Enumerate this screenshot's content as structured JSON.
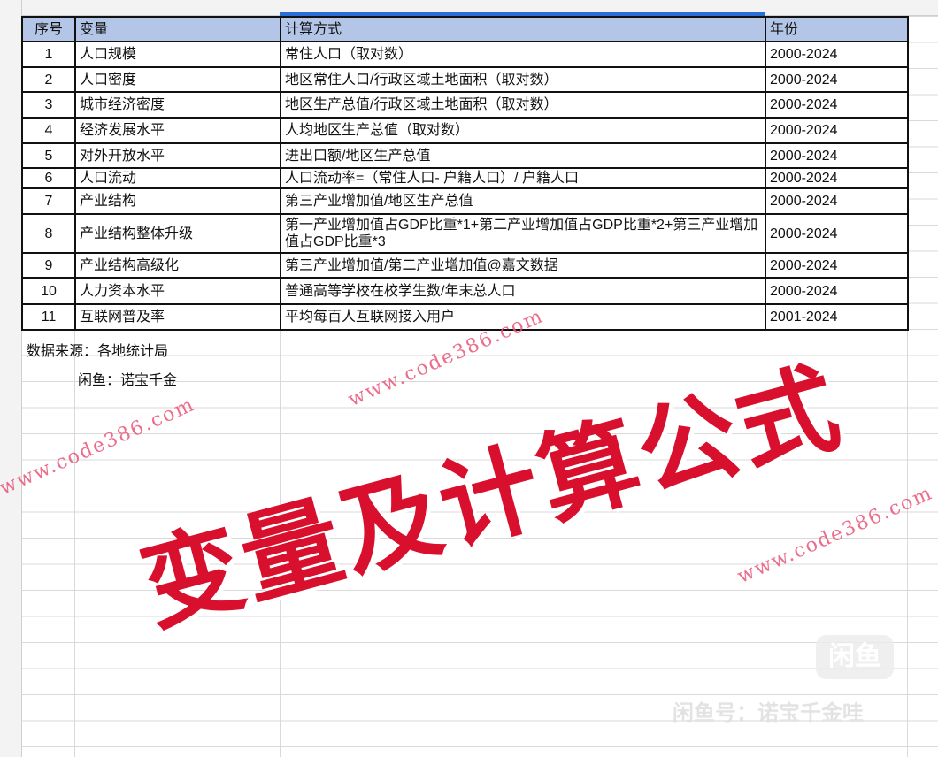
{
  "table": {
    "headers": [
      "序号",
      "变量",
      "计算方式",
      "年份"
    ],
    "rows": [
      [
        "1",
        "人口规模",
        "常住人口（取对数）",
        "2000-2024"
      ],
      [
        "2",
        "人口密度",
        "地区常住人口/行政区域土地面积（取对数）",
        "2000-2024"
      ],
      [
        "3",
        "城市经济密度",
        "地区生产总值/行政区域土地面积（取对数）",
        "2000-2024"
      ],
      [
        "4",
        "经济发展水平",
        "人均地区生产总值（取对数）",
        "2000-2024"
      ],
      [
        "5",
        "对外开放水平",
        "进出口额/地区生产总值",
        "2000-2024"
      ],
      [
        "6",
        "人口流动",
        "人口流动率=（常住人口- 户籍人口）/ 户籍人口",
        "2000-2024"
      ],
      [
        "7",
        "产业结构",
        "第三产业增加值/地区生产总值",
        "2000-2024"
      ],
      [
        "8",
        "产业结构整体升级",
        "第一产业增加值占GDP比重*1+第二产业增加值占GDP比重*2+第三产业增加值占GDP比重*3",
        "2000-2024"
      ],
      [
        "9",
        "产业结构高级化",
        "第三产业增加值/第二产业增加值@嘉文数据",
        "2000-2024"
      ],
      [
        "10",
        "人力资本水平",
        "普通高等学校在校学生数/年末总人口",
        "2000-2024"
      ],
      [
        "11",
        "互联网普及率",
        "平均每百人互联网接入用户",
        "2001-2024"
      ]
    ]
  },
  "notes": {
    "source": "数据来源：各地统计局",
    "xianyu": "闲鱼：诺宝千金"
  },
  "watermark": "www.code386.com",
  "stamp": "变量及计算公式",
  "xianyu_logo": "闲鱼",
  "xianyu_id": "闲鱼号：诺宝千金哇",
  "colors": {
    "header_fill": "#b4c6e7",
    "stamp": "#d8102e",
    "watermark": "#e8557a",
    "selection": "#2b6fd6"
  }
}
